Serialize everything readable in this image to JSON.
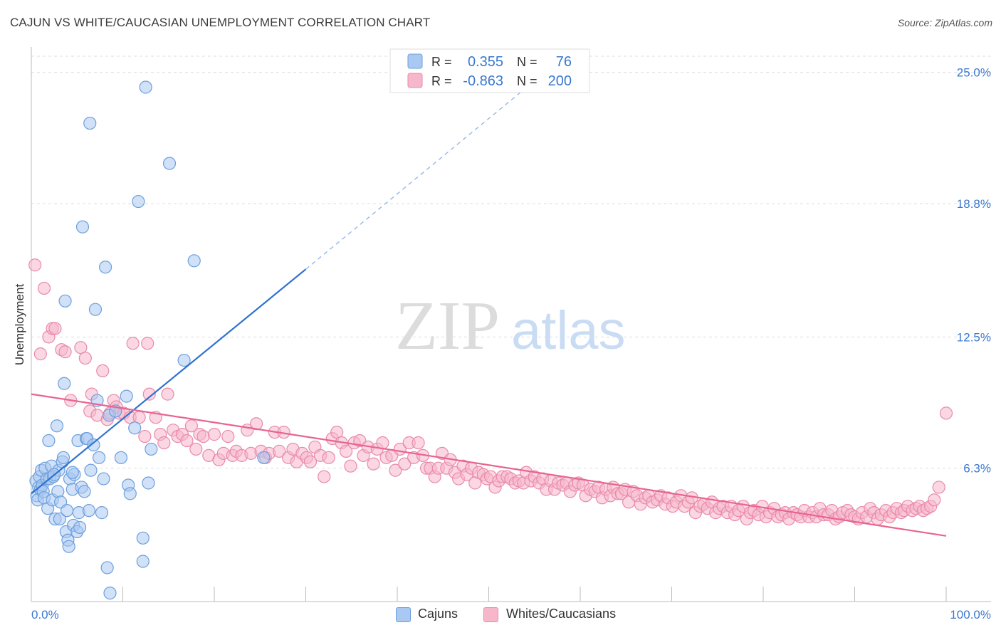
{
  "title": "CAJUN VS WHITE/CAUCASIAN UNEMPLOYMENT CORRELATION CHART",
  "source": "Source: ZipAtlas.com",
  "watermark": {
    "zip": "ZIP",
    "atlas": "atlas"
  },
  "colors": {
    "cajun_fill": "#a9c9f2",
    "cajun_stroke": "#6d9fdc",
    "cajun_line": "#2f72d0",
    "white_fill": "#f6b7cb",
    "white_stroke": "#e98aab",
    "white_line": "#e8648f",
    "axis_text": "#3a78d0",
    "grid": "#dddddd"
  },
  "legend": {
    "r_label": "R =",
    "n_label": "N =",
    "rows": [
      {
        "r": "0.355",
        "n": "76"
      },
      {
        "r": "-0.863",
        "n": "200"
      }
    ]
  },
  "bottom_legend": [
    "Cajuns",
    "Whites/Caucasians"
  ],
  "chart_data": {
    "type": "scatter",
    "title": "CAJUN VS WHITE/CAUCASIAN UNEMPLOYMENT CORRELATION CHART",
    "xlabel": "",
    "ylabel": "Unemployment",
    "xlim": [
      0,
      100
    ],
    "ylim": [
      0,
      26.2
    ],
    "x_tick_labels": [
      "0.0%",
      "100.0%"
    ],
    "y_ticks": [
      6.3,
      12.5,
      18.8,
      25.0
    ],
    "y_tick_labels": [
      "6.3%",
      "12.5%",
      "18.8%",
      "25.0%"
    ],
    "series": [
      {
        "name": "Cajuns",
        "r": 0.355,
        "n": 76,
        "trend": {
          "x0": 0,
          "y0": 5.1,
          "x1": 30,
          "y1": 15.7,
          "dashed_to_x": 55,
          "dashed_to_y": 24.6
        },
        "points": [
          [
            0.5,
            5.7
          ],
          [
            0.6,
            5.0
          ],
          [
            0.7,
            4.8
          ],
          [
            0.8,
            5.4
          ],
          [
            0.9,
            5.9
          ],
          [
            1.0,
            5.3
          ],
          [
            1.1,
            6.2
          ],
          [
            1.2,
            5.5
          ],
          [
            1.3,
            5.2
          ],
          [
            1.4,
            4.9
          ],
          [
            1.5,
            6.3
          ],
          [
            1.7,
            5.8
          ],
          [
            1.8,
            4.4
          ],
          [
            1.9,
            7.6
          ],
          [
            2.0,
            5.8
          ],
          [
            2.2,
            6.4
          ],
          [
            2.3,
            4.8
          ],
          [
            2.4,
            5.9
          ],
          [
            2.6,
            3.9
          ],
          [
            2.8,
            8.3
          ],
          [
            2.9,
            5.2
          ],
          [
            3.0,
            6.2
          ],
          [
            3.1,
            3.9
          ],
          [
            3.2,
            4.7
          ],
          [
            3.4,
            6.6
          ],
          [
            3.5,
            6.8
          ],
          [
            3.6,
            10.3
          ],
          [
            3.7,
            14.2
          ],
          [
            3.8,
            3.3
          ],
          [
            3.9,
            4.3
          ],
          [
            4.0,
            2.9
          ],
          [
            4.1,
            2.6
          ],
          [
            4.2,
            5.8
          ],
          [
            4.5,
            5.3
          ],
          [
            4.6,
            3.6
          ],
          [
            4.7,
            6.0
          ],
          [
            5.0,
            3.3
          ],
          [
            5.1,
            7.6
          ],
          [
            5.2,
            4.2
          ],
          [
            5.3,
            3.5
          ],
          [
            5.5,
            5.4
          ],
          [
            5.6,
            17.7
          ],
          [
            5.8,
            5.2
          ],
          [
            6.0,
            7.7
          ],
          [
            6.1,
            7.7
          ],
          [
            6.3,
            4.3
          ],
          [
            6.4,
            22.6
          ],
          [
            6.5,
            6.2
          ],
          [
            6.8,
            7.4
          ],
          [
            7.0,
            13.8
          ],
          [
            7.2,
            9.5
          ],
          [
            7.4,
            6.8
          ],
          [
            7.7,
            4.2
          ],
          [
            7.9,
            5.8
          ],
          [
            8.1,
            15.8
          ],
          [
            8.3,
            1.6
          ],
          [
            8.5,
            8.8
          ],
          [
            8.6,
            0.4
          ],
          [
            9.2,
            9.0
          ],
          [
            9.8,
            6.8
          ],
          [
            10.4,
            9.7
          ],
          [
            10.6,
            5.5
          ],
          [
            10.8,
            5.1
          ],
          [
            11.3,
            8.2
          ],
          [
            11.7,
            18.9
          ],
          [
            12.2,
            3.0
          ],
          [
            12.2,
            1.9
          ],
          [
            12.5,
            24.3
          ],
          [
            12.8,
            5.6
          ],
          [
            13.1,
            7.2
          ],
          [
            15.1,
            20.7
          ],
          [
            16.7,
            11.4
          ],
          [
            17.8,
            16.1
          ],
          [
            25.4,
            6.8
          ],
          [
            4.5,
            6.1
          ],
          [
            2.5,
            6.0
          ]
        ]
      },
      {
        "name": "Whites/Caucasians",
        "r": -0.863,
        "n": 200,
        "trend": {
          "x0": 0,
          "y0": 9.8,
          "x1": 100,
          "y1": 3.1
        },
        "points": [
          [
            0.4,
            15.9
          ],
          [
            1.0,
            11.7
          ],
          [
            1.4,
            14.8
          ],
          [
            1.9,
            12.5
          ],
          [
            2.3,
            12.9
          ],
          [
            2.6,
            12.9
          ],
          [
            3.3,
            11.9
          ],
          [
            3.7,
            11.8
          ],
          [
            4.3,
            9.5
          ],
          [
            5.4,
            12.0
          ],
          [
            5.9,
            11.5
          ],
          [
            6.4,
            9.0
          ],
          [
            6.6,
            9.8
          ],
          [
            7.2,
            8.8
          ],
          [
            7.8,
            10.9
          ],
          [
            8.3,
            8.6
          ],
          [
            8.6,
            8.9
          ],
          [
            9.0,
            9.5
          ],
          [
            9.3,
            9.2
          ],
          [
            9.6,
            8.9
          ],
          [
            10.1,
            8.9
          ],
          [
            10.8,
            8.7
          ],
          [
            11.1,
            12.2
          ],
          [
            11.8,
            8.7
          ],
          [
            12.4,
            7.8
          ],
          [
            12.7,
            12.2
          ],
          [
            12.9,
            9.8
          ],
          [
            13.6,
            8.7
          ],
          [
            14.1,
            7.9
          ],
          [
            14.5,
            7.5
          ],
          [
            14.9,
            9.8
          ],
          [
            15.5,
            8.1
          ],
          [
            16.0,
            7.8
          ],
          [
            16.5,
            7.9
          ],
          [
            17.0,
            7.6
          ],
          [
            17.5,
            8.3
          ],
          [
            18.0,
            7.2
          ],
          [
            18.4,
            7.9
          ],
          [
            18.8,
            7.8
          ],
          [
            19.4,
            6.9
          ],
          [
            20.0,
            7.9
          ],
          [
            20.5,
            6.7
          ],
          [
            21.0,
            7.0
          ],
          [
            21.5,
            7.8
          ],
          [
            22.0,
            6.9
          ],
          [
            22.4,
            7.1
          ],
          [
            23.0,
            6.9
          ],
          [
            23.6,
            8.1
          ],
          [
            24.0,
            7.0
          ],
          [
            24.6,
            8.4
          ],
          [
            25.1,
            7.1
          ],
          [
            25.6,
            6.8
          ],
          [
            26.0,
            7.0
          ],
          [
            26.6,
            8.0
          ],
          [
            27.1,
            7.1
          ],
          [
            27.6,
            8.0
          ],
          [
            28.1,
            6.8
          ],
          [
            28.6,
            7.2
          ],
          [
            29.0,
            6.6
          ],
          [
            29.6,
            7.0
          ],
          [
            30.1,
            6.8
          ],
          [
            30.5,
            6.6
          ],
          [
            31.0,
            7.3
          ],
          [
            31.6,
            6.9
          ],
          [
            32.0,
            5.9
          ],
          [
            32.5,
            6.8
          ],
          [
            32.9,
            7.7
          ],
          [
            33.4,
            8.0
          ],
          [
            33.9,
            7.5
          ],
          [
            34.4,
            7.1
          ],
          [
            34.9,
            6.4
          ],
          [
            35.3,
            7.5
          ],
          [
            35.9,
            7.6
          ],
          [
            36.3,
            6.9
          ],
          [
            36.8,
            7.3
          ],
          [
            37.4,
            6.5
          ],
          [
            37.8,
            7.2
          ],
          [
            38.4,
            7.5
          ],
          [
            38.8,
            6.8
          ],
          [
            39.4,
            6.9
          ],
          [
            39.8,
            6.2
          ],
          [
            40.3,
            7.2
          ],
          [
            40.8,
            6.5
          ],
          [
            41.3,
            7.5
          ],
          [
            41.8,
            6.8
          ],
          [
            42.3,
            7.5
          ],
          [
            42.8,
            6.9
          ],
          [
            43.2,
            6.3
          ],
          [
            43.6,
            6.3
          ],
          [
            44.1,
            5.9
          ],
          [
            44.5,
            6.3
          ],
          [
            44.9,
            7.0
          ],
          [
            45.4,
            6.3
          ],
          [
            45.8,
            6.7
          ],
          [
            46.3,
            6.1
          ],
          [
            46.7,
            5.8
          ],
          [
            47.2,
            6.4
          ],
          [
            47.6,
            6.0
          ],
          [
            48.1,
            6.3
          ],
          [
            48.5,
            5.6
          ],
          [
            48.9,
            6.1
          ],
          [
            49.4,
            6.0
          ],
          [
            49.8,
            5.8
          ],
          [
            50.2,
            5.9
          ],
          [
            50.7,
            5.4
          ],
          [
            51.1,
            5.7
          ],
          [
            51.5,
            5.9
          ],
          [
            52.0,
            5.9
          ],
          [
            52.4,
            5.8
          ],
          [
            52.9,
            5.6
          ],
          [
            53.3,
            5.7
          ],
          [
            53.8,
            5.6
          ],
          [
            54.1,
            6.1
          ],
          [
            54.6,
            5.7
          ],
          [
            55.0,
            5.9
          ],
          [
            55.5,
            5.6
          ],
          [
            55.9,
            5.8
          ],
          [
            56.3,
            5.3
          ],
          [
            56.8,
            5.7
          ],
          [
            57.2,
            5.3
          ],
          [
            57.6,
            5.6
          ],
          [
            58.1,
            5.5
          ],
          [
            58.5,
            5.6
          ],
          [
            58.9,
            5.2
          ],
          [
            59.4,
            5.5
          ],
          [
            59.8,
            5.6
          ],
          [
            60.3,
            5.5
          ],
          [
            60.6,
            5.0
          ],
          [
            61.1,
            5.3
          ],
          [
            61.6,
            5.2
          ],
          [
            62.0,
            5.4
          ],
          [
            62.4,
            4.9
          ],
          [
            62.8,
            5.3
          ],
          [
            63.3,
            5.0
          ],
          [
            63.6,
            5.4
          ],
          [
            64.1,
            5.1
          ],
          [
            64.5,
            5.1
          ],
          [
            64.9,
            5.3
          ],
          [
            65.3,
            4.7
          ],
          [
            65.8,
            5.2
          ],
          [
            66.2,
            5.0
          ],
          [
            66.6,
            4.6
          ],
          [
            67.1,
            4.9
          ],
          [
            67.5,
            5.0
          ],
          [
            67.9,
            4.7
          ],
          [
            68.4,
            4.8
          ],
          [
            68.8,
            5.0
          ],
          [
            69.3,
            4.6
          ],
          [
            69.6,
            4.9
          ],
          [
            70.1,
            4.5
          ],
          [
            70.5,
            4.7
          ],
          [
            71.0,
            5.0
          ],
          [
            71.4,
            4.5
          ],
          [
            71.8,
            4.7
          ],
          [
            72.2,
            4.9
          ],
          [
            72.6,
            4.2
          ],
          [
            73.1,
            4.5
          ],
          [
            73.5,
            4.6
          ],
          [
            73.9,
            4.4
          ],
          [
            74.4,
            4.7
          ],
          [
            74.8,
            4.2
          ],
          [
            75.2,
            4.4
          ],
          [
            75.6,
            4.5
          ],
          [
            76.1,
            4.2
          ],
          [
            76.5,
            4.5
          ],
          [
            76.9,
            4.1
          ],
          [
            77.3,
            4.3
          ],
          [
            77.8,
            4.5
          ],
          [
            78.2,
            3.9
          ],
          [
            78.6,
            4.2
          ],
          [
            79.0,
            4.3
          ],
          [
            79.5,
            4.1
          ],
          [
            79.9,
            4.5
          ],
          [
            80.3,
            4.0
          ],
          [
            80.7,
            4.2
          ],
          [
            81.2,
            4.4
          ],
          [
            81.6,
            4.0
          ],
          [
            82.0,
            4.1
          ],
          [
            82.4,
            4.2
          ],
          [
            82.8,
            3.9
          ],
          [
            83.3,
            4.2
          ],
          [
            83.7,
            4.1
          ],
          [
            84.1,
            4.0
          ],
          [
            84.5,
            4.3
          ],
          [
            85.0,
            4.0
          ],
          [
            85.4,
            4.2
          ],
          [
            85.8,
            4.0
          ],
          [
            86.2,
            4.4
          ],
          [
            86.6,
            4.1
          ],
          [
            87.1,
            4.1
          ],
          [
            87.5,
            4.3
          ],
          [
            87.9,
            3.9
          ],
          [
            88.3,
            4.0
          ],
          [
            88.7,
            4.2
          ],
          [
            89.2,
            4.3
          ],
          [
            89.6,
            4.1
          ],
          [
            90.0,
            4.0
          ],
          [
            90.4,
            3.9
          ],
          [
            90.8,
            4.2
          ],
          [
            91.3,
            4.0
          ],
          [
            91.7,
            4.4
          ],
          [
            92.1,
            4.2
          ],
          [
            92.5,
            3.9
          ],
          [
            92.9,
            4.1
          ],
          [
            93.4,
            4.3
          ],
          [
            93.8,
            4.0
          ],
          [
            94.2,
            4.2
          ],
          [
            94.6,
            4.4
          ],
          [
            95.1,
            4.2
          ],
          [
            95.4,
            4.3
          ],
          [
            95.8,
            4.5
          ],
          [
            96.3,
            4.3
          ],
          [
            96.7,
            4.4
          ],
          [
            97.1,
            4.5
          ],
          [
            97.5,
            4.3
          ],
          [
            97.9,
            4.4
          ],
          [
            98.3,
            4.5
          ],
          [
            98.7,
            4.8
          ],
          [
            99.2,
            5.4
          ],
          [
            100.0,
            8.9
          ]
        ]
      }
    ]
  }
}
